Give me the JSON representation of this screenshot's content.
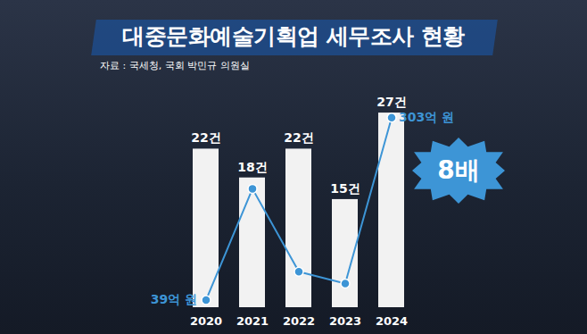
{
  "chart_data": {
    "type": "bar",
    "title": "대중문화예술기획업 세무조사 현황",
    "subtitle": "자료 : 국세청, 국회 박민규 의원실",
    "categories": [
      "2020",
      "2021",
      "2022",
      "2023",
      "2024"
    ],
    "series": [
      {
        "type": "bar",
        "color": "#f2f2f2",
        "values": [
          22,
          18,
          22,
          15,
          27
        ],
        "value_labels": [
          "22건",
          "18건",
          "22건",
          "15건",
          "27건"
        ]
      },
      {
        "type": "line",
        "axis": "y2",
        "color": "#3d95d6",
        "marker": "circle",
        "values": [
          39,
          200,
          80,
          63,
          303
        ],
        "value_labels": [
          "39억 원",
          null,
          null,
          null,
          "303억 원"
        ]
      }
    ],
    "ylim": [
      0,
      28
    ],
    "y2lim": [
      28,
      320
    ],
    "data_labels": true,
    "tick_labels": "x",
    "grid": false,
    "annotations": [
      "8배"
    ]
  }
}
